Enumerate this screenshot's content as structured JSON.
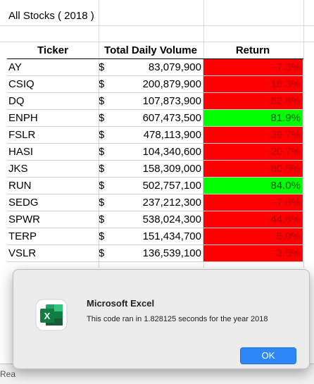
{
  "sheet": {
    "title": "All Stocks ( 2018 )",
    "headers": [
      "Ticker",
      "Total Daily Volume",
      "Return"
    ],
    "currency_symbol": "$",
    "rows": [
      {
        "ticker": "AY",
        "volume": "83,079,900",
        "return": "-7.3%",
        "status": "negative"
      },
      {
        "ticker": "CSIQ",
        "volume": "200,879,900",
        "return": "-16.3%",
        "status": "negative"
      },
      {
        "ticker": "DQ",
        "volume": "107,873,900",
        "return": "-62.6%",
        "status": "negative"
      },
      {
        "ticker": "ENPH",
        "volume": "607,473,500",
        "return": "81.9%",
        "status": "positive"
      },
      {
        "ticker": "FSLR",
        "volume": "478,113,900",
        "return": "-39.7%",
        "status": "negative"
      },
      {
        "ticker": "HASI",
        "volume": "104,340,600",
        "return": "-20.7%",
        "status": "negative"
      },
      {
        "ticker": "JKS",
        "volume": "158,309,000",
        "return": "-60.5%",
        "status": "negative"
      },
      {
        "ticker": "RUN",
        "volume": "502,757,100",
        "return": "84.0%",
        "status": "positive"
      },
      {
        "ticker": "SEDG",
        "volume": "237,212,300",
        "return": "-7.8%",
        "status": "negative"
      },
      {
        "ticker": "SPWR",
        "volume": "538,024,300",
        "return": "-44.6%",
        "status": "negative"
      },
      {
        "ticker": "TERP",
        "volume": "151,434,700",
        "return": "-5.0%",
        "status": "negative"
      },
      {
        "ticker": "VSLR",
        "volume": "136,539,100",
        "return": "-3.5%",
        "status": "negative"
      }
    ],
    "colors": {
      "negative": "#ff0000",
      "positive": "#00ff00"
    }
  },
  "dialog": {
    "title": "Microsoft Excel",
    "message": "This code ran in 1.828125 seconds for the year 2018",
    "ok_label": "OK",
    "icon": "excel-app-icon"
  },
  "statusbar": {
    "text": "Rea"
  }
}
